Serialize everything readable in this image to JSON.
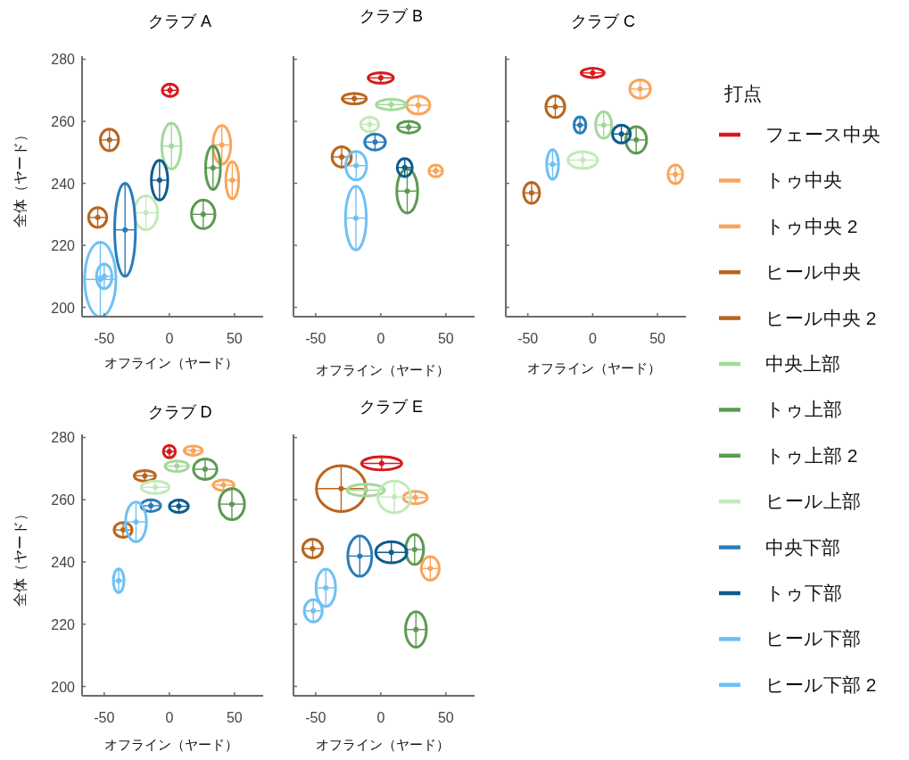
{
  "chart_data": [
    {
      "type": "scatter",
      "title": "クラブ A",
      "xlabel": "オフライン（ヤード）",
      "ylabel": "全体（ヤード）",
      "xlim": [
        -67,
        72
      ],
      "ylim": [
        197,
        281
      ],
      "xticks": [
        -50,
        0,
        50
      ],
      "yticks": [
        200,
        220,
        240,
        260,
        280
      ],
      "marker": "circle",
      "series": [
        {
          "color": "#d7191c",
          "x": [
            0.5
          ],
          "values": [
            270
          ],
          "xerrors": [
            6
          ],
          "errors": [
            2
          ]
        },
        {
          "color": "#f9a55a",
          "x": [
            40.3
          ],
          "values": [
            252.4
          ],
          "xerrors": [
            6.8
          ],
          "errors": [
            6.2
          ]
        },
        {
          "color": "#f9a55a",
          "x": [
            48.3
          ],
          "values": [
            241
          ],
          "xerrors": [
            5
          ],
          "errors": [
            6
          ]
        },
        {
          "color": "#b9651e",
          "x": [
            -46
          ],
          "values": [
            254
          ],
          "xerrors": [
            7
          ],
          "errors": [
            3.5
          ]
        },
        {
          "color": "#b9651e",
          "x": [
            -55
          ],
          "values": [
            229
          ],
          "xerrors": [
            7
          ],
          "errors": [
            3.2
          ]
        },
        {
          "color": "#a3d99b",
          "x": [
            1.6
          ],
          "values": [
            252
          ],
          "xerrors": [
            7.4
          ],
          "errors": [
            7.4
          ]
        },
        {
          "color": "#5c9a52",
          "x": [
            33.5
          ],
          "values": [
            245
          ],
          "xerrors": [
            5.7
          ],
          "errors": [
            7
          ]
        },
        {
          "color": "#5c9a52",
          "x": [
            26
          ],
          "values": [
            230
          ],
          "xerrors": [
            9
          ],
          "errors": [
            4.6
          ]
        },
        {
          "color": "#c2eab8",
          "x": [
            -18
          ],
          "values": [
            230.5
          ],
          "xerrors": [
            9
          ],
          "errors": [
            5.5
          ]
        },
        {
          "color": "#2a7cb9",
          "x": [
            -34
          ],
          "values": [
            225
          ],
          "xerrors": [
            8
          ],
          "errors": [
            15
          ]
        },
        {
          "color": "#0d5b8c",
          "x": [
            -7.5
          ],
          "values": [
            241
          ],
          "xerrors": [
            6.3
          ],
          "errors": [
            6.4
          ]
        },
        {
          "color": "#6fc0f4",
          "x": [
            -50
          ],
          "values": [
            210
          ],
          "xerrors": [
            6
          ],
          "errors": [
            4
          ]
        },
        {
          "color": "#6fc0f4",
          "x": [
            -53
          ],
          "values": [
            209
          ],
          "xerrors": [
            12
          ],
          "errors": [
            12
          ]
        }
      ]
    },
    {
      "type": "scatter",
      "title": "クラブ B",
      "xlabel": "オフライン（ヤード）",
      "xlim": [
        -67,
        72
      ],
      "ylim": [
        197,
        281
      ],
      "xticks": [
        -50,
        0,
        50
      ],
      "yticks": [
        {
          "value": 200,
          "label": null
        },
        {
          "value": 220,
          "label": null
        },
        {
          "value": 240,
          "label": null
        },
        {
          "value": 260,
          "label": null
        },
        {
          "value": 280,
          "label": null
        }
      ],
      "tick_labels": "x",
      "marker": "circle",
      "series": [
        {
          "color": "#d7191c",
          "x": [
            0
          ],
          "values": [
            274
          ],
          "xerrors": [
            9.7
          ],
          "errors": [
            1.7
          ]
        },
        {
          "color": "#f9a55a",
          "x": [
            28.8
          ],
          "values": [
            265.2
          ],
          "xerrors": [
            8.9
          ],
          "errors": [
            2.9
          ]
        },
        {
          "color": "#f9a55a",
          "x": [
            42.2
          ],
          "values": [
            244
          ],
          "xerrors": [
            5.3
          ],
          "errors": [
            1.9
          ]
        },
        {
          "color": "#b9651e",
          "x": [
            -20.3
          ],
          "values": [
            267.3
          ],
          "xerrors": [
            9.3
          ],
          "errors": [
            1.7
          ]
        },
        {
          "color": "#b9651e",
          "x": [
            -30
          ],
          "values": [
            248.5
          ],
          "xerrors": [
            7.4
          ],
          "errors": [
            3.3
          ]
        },
        {
          "color": "#a3d99b",
          "x": [
            8
          ],
          "values": [
            265.4
          ],
          "xerrors": [
            11.5
          ],
          "errors": [
            1.7
          ]
        },
        {
          "color": "#5c9a52",
          "x": [
            21.4
          ],
          "values": [
            258.1
          ],
          "xerrors": [
            8.5
          ],
          "errors": [
            1.9
          ]
        },
        {
          "color": "#5c9a52",
          "x": [
            20.3
          ],
          "values": [
            237.5
          ],
          "xerrors": [
            8
          ],
          "errors": [
            7.1
          ]
        },
        {
          "color": "#c2eab8",
          "x": [
            -8.5
          ],
          "values": [
            259
          ],
          "xerrors": [
            6.9
          ],
          "errors": [
            2.4
          ]
        },
        {
          "color": "#2a7cb9",
          "x": [
            -4.4
          ],
          "values": [
            253.3
          ],
          "xerrors": [
            8
          ],
          "errors": [
            2.6
          ]
        },
        {
          "color": "#0d5b8c",
          "x": [
            18.4
          ],
          "values": [
            245.1
          ],
          "xerrors": [
            5.8
          ],
          "errors": [
            2.9
          ]
        },
        {
          "color": "#6fc0f4",
          "x": [
            -18.9
          ],
          "values": [
            245.7
          ],
          "xerrors": [
            8
          ],
          "errors": [
            4.6
          ]
        },
        {
          "color": "#6fc0f4",
          "x": [
            -19.1
          ],
          "values": [
            228.8
          ],
          "xerrors": [
            8
          ],
          "errors": [
            10.3
          ]
        }
      ]
    },
    {
      "type": "scatter",
      "title": "クラブ C",
      "xlabel": "オフライン（ヤード）",
      "xlim": [
        -67,
        72
      ],
      "ylim": [
        197,
        281
      ],
      "xticks": [
        -50,
        0,
        50
      ],
      "yticks": [
        {
          "value": 200,
          "label": null
        },
        {
          "value": 220,
          "label": null
        },
        {
          "value": 240,
          "label": null
        },
        {
          "value": 260,
          "label": null
        },
        {
          "value": 280,
          "label": null
        }
      ],
      "tick_labels": "x",
      "marker": "circle",
      "legend": "right",
      "legend_title": "打点",
      "series": [
        {
          "name": "フェース中央",
          "color": "#d7191c",
          "x": [
            0
          ],
          "values": [
            275.6
          ],
          "xerrors": [
            8.9
          ],
          "errors": [
            1.5
          ]
        },
        {
          "name": "トゥ中央",
          "color": "#f9a55a",
          "x": [
            36.6
          ],
          "values": [
            270.4
          ],
          "xerrors": [
            8
          ],
          "errors": [
            3
          ]
        },
        {
          "name": "トゥ中央 2",
          "color": "#f9a55a",
          "x": [
            63.8
          ],
          "values": [
            242.9
          ],
          "xerrors": [
            5.7
          ],
          "errors": [
            3
          ]
        },
        {
          "name": "ヒール中央",
          "color": "#b9651e",
          "x": [
            -28.8
          ],
          "values": [
            264.7
          ],
          "xerrors": [
            7.3
          ],
          "errors": [
            3.5
          ]
        },
        {
          "name": "ヒール中央 2",
          "color": "#b9651e",
          "x": [
            -47.1
          ],
          "values": [
            236.9
          ],
          "xerrors": [
            6.2
          ],
          "errors": [
            3.4
          ]
        },
        {
          "name": "中央上部",
          "color": "#a3d99b",
          "x": [
            8.5
          ],
          "values": [
            258.8
          ],
          "xerrors": [
            6.2
          ],
          "errors": [
            4.3
          ]
        },
        {
          "name": "トゥ上部",
          "color": "#5c9a52",
          "x": [
            33.6
          ],
          "values": [
            254
          ],
          "xerrors": [
            8
          ],
          "errors": [
            4.3
          ]
        },
        {
          "name": "トゥ上部 2",
          "color": "#5c9a52",
          "x": [
            null
          ],
          "values": [
            null
          ],
          "xerrors": [
            null
          ],
          "errors": [
            null
          ]
        },
        {
          "name": "ヒール上部",
          "color": "#c2eab8",
          "x": [
            -7.6
          ],
          "values": [
            247.5
          ],
          "xerrors": [
            11.4
          ],
          "errors": [
            2.7
          ]
        },
        {
          "name": "中央下部",
          "color": "#2a7cb9",
          "x": [
            -9.8
          ],
          "values": [
            258.8
          ],
          "xerrors": [
            4.6
          ],
          "errors": [
            2.6
          ]
        },
        {
          "name": "トゥ下部",
          "color": "#0d5b8c",
          "x": [
            22.2
          ],
          "values": [
            255.9
          ],
          "xerrors": [
            6.9
          ],
          "errors": [
            2.9
          ]
        },
        {
          "name": "ヒール下部",
          "color": "#6fc0f4",
          "x": [
            -30.9
          ],
          "values": [
            246.1
          ],
          "xerrors": [
            4.6
          ],
          "errors": [
            4.8
          ]
        },
        {
          "name": "ヒール下部 2",
          "color": "#6fc0f4",
          "x": [
            null
          ],
          "values": [
            null
          ],
          "xerrors": [
            null
          ],
          "errors": [
            null
          ]
        }
      ]
    },
    {
      "type": "scatter",
      "title": "クラブ D",
      "xlabel": "オフライン（ヤード）",
      "ylabel": "全体（ヤード）",
      "xlim": [
        -67,
        72
      ],
      "ylim": [
        197,
        281
      ],
      "xticks": [
        -50,
        0,
        50
      ],
      "yticks": [
        200,
        220,
        240,
        260,
        280
      ],
      "marker": "circle",
      "series": [
        {
          "color": "#d7191c",
          "x": [
            0
          ],
          "values": [
            275.5
          ],
          "xerrors": [
            4.6
          ],
          "errors": [
            2
          ]
        },
        {
          "color": "#f9a55a",
          "x": [
            18.3
          ],
          "values": [
            275.8
          ],
          "xerrors": [
            6.9
          ],
          "errors": [
            1.5
          ]
        },
        {
          "color": "#f9a55a",
          "x": [
            41.6
          ],
          "values": [
            264.7
          ],
          "xerrors": [
            8
          ],
          "errors": [
            1.7
          ]
        },
        {
          "color": "#b9651e",
          "x": [
            -18.8
          ],
          "values": [
            267.7
          ],
          "xerrors": [
            8.2
          ],
          "errors": [
            1.7
          ]
        },
        {
          "color": "#b9651e",
          "x": [
            -35.5
          ],
          "values": [
            250.3
          ],
          "xerrors": [
            6.9
          ],
          "errors": [
            2.4
          ]
        },
        {
          "color": "#a3d99b",
          "x": [
            5.7
          ],
          "values": [
            270.8
          ],
          "xerrors": [
            9
          ],
          "errors": [
            1.7
          ]
        },
        {
          "color": "#5c9a52",
          "x": [
            27.5
          ],
          "values": [
            269.8
          ],
          "xerrors": [
            9
          ],
          "errors": [
            3.3
          ]
        },
        {
          "color": "#5c9a52",
          "x": [
            48
          ],
          "values": [
            258.6
          ],
          "xerrors": [
            9.7
          ],
          "errors": [
            5
          ]
        },
        {
          "color": "#c2eab8",
          "x": [
            -10.8
          ],
          "values": [
            264
          ],
          "xerrors": [
            10.8
          ],
          "errors": [
            2
          ]
        },
        {
          "color": "#2a7cb9",
          "x": [
            -14.2
          ],
          "values": [
            258.1
          ],
          "xerrors": [
            7.5
          ],
          "errors": [
            1.9
          ]
        },
        {
          "color": "#0d5b8c",
          "x": [
            7.3
          ],
          "values": [
            257.9
          ],
          "xerrors": [
            7.3
          ],
          "errors": [
            2
          ]
        },
        {
          "color": "#6fc0f4",
          "x": [
            -25.6
          ],
          "values": [
            252.9
          ],
          "xerrors": [
            8
          ],
          "errors": [
            6.4
          ]
        },
        {
          "color": "#6fc0f4",
          "x": [
            -38.9
          ],
          "values": [
            234
          ],
          "xerrors": [
            4.1
          ],
          "errors": [
            3.8
          ]
        }
      ]
    },
    {
      "type": "scatter",
      "title": "クラブ E",
      "xlabel": "オフライン（ヤード）",
      "xlim": [
        -67,
        72
      ],
      "ylim": [
        197,
        281
      ],
      "xticks": [
        -50,
        0,
        50
      ],
      "yticks": [
        {
          "value": 200,
          "label": null
        },
        {
          "value": 220,
          "label": null
        },
        {
          "value": 240,
          "label": null
        },
        {
          "value": 260,
          "label": null
        },
        {
          "value": 280,
          "label": null
        }
      ],
      "tick_labels": "x",
      "marker": "circle",
      "series": [
        {
          "color": "#d7191c",
          "x": [
            0.7
          ],
          "values": [
            271.7
          ],
          "xerrors": [
            15.4
          ],
          "errors": [
            2.1
          ]
        },
        {
          "color": "#f9a55a",
          "x": [
            26.5
          ],
          "values": [
            260.7
          ],
          "xerrors": [
            9.2
          ],
          "errors": [
            2
          ]
        },
        {
          "color": "#f9a55a",
          "x": [
            38
          ],
          "values": [
            237.9
          ],
          "xerrors": [
            6.9
          ],
          "errors": [
            3.8
          ]
        },
        {
          "color": "#b9651e",
          "x": [
            -30.4
          ],
          "values": [
            263.6
          ],
          "xerrors": [
            19
          ],
          "errors": [
            7.4
          ]
        },
        {
          "color": "#b9651e",
          "x": [
            -52.3
          ],
          "values": [
            244.3
          ],
          "xerrors": [
            7.6
          ],
          "errors": [
            3
          ]
        },
        {
          "color": "#a3d99b",
          "x": [
            -11.5
          ],
          "values": [
            263.1
          ],
          "xerrors": [
            14.4
          ],
          "errors": [
            1.9
          ]
        },
        {
          "color": "#5c9a52",
          "x": [
            26
          ],
          "values": [
            244
          ],
          "xerrors": [
            6.9
          ],
          "errors": [
            4.8
          ]
        },
        {
          "color": "#5c9a52",
          "x": [
            27
          ],
          "values": [
            218.3
          ],
          "xerrors": [
            8
          ],
          "errors": [
            5.7
          ]
        },
        {
          "color": "#c2eab8",
          "x": [
            10.4
          ],
          "values": [
            260.9
          ],
          "xerrors": [
            12.7
          ],
          "errors": [
            5.1
          ]
        },
        {
          "color": "#2a7cb9",
          "x": [
            -16.1
          ],
          "values": [
            241.9
          ],
          "xerrors": [
            9.2
          ],
          "errors": [
            6.5
          ]
        },
        {
          "color": "#0d5b8c",
          "x": [
            8.1
          ],
          "values": [
            243.1
          ],
          "xerrors": [
            12
          ],
          "errors": [
            3.4
          ]
        },
        {
          "color": "#6fc0f4",
          "x": [
            -42.2
          ],
          "values": [
            231.7
          ],
          "xerrors": [
            7.5
          ],
          "errors": [
            6
          ]
        },
        {
          "color": "#6fc0f4",
          "x": [
            -51.8
          ],
          "values": [
            224.3
          ],
          "xerrors": [
            6.9
          ],
          "errors": [
            3.6
          ]
        }
      ]
    }
  ]
}
